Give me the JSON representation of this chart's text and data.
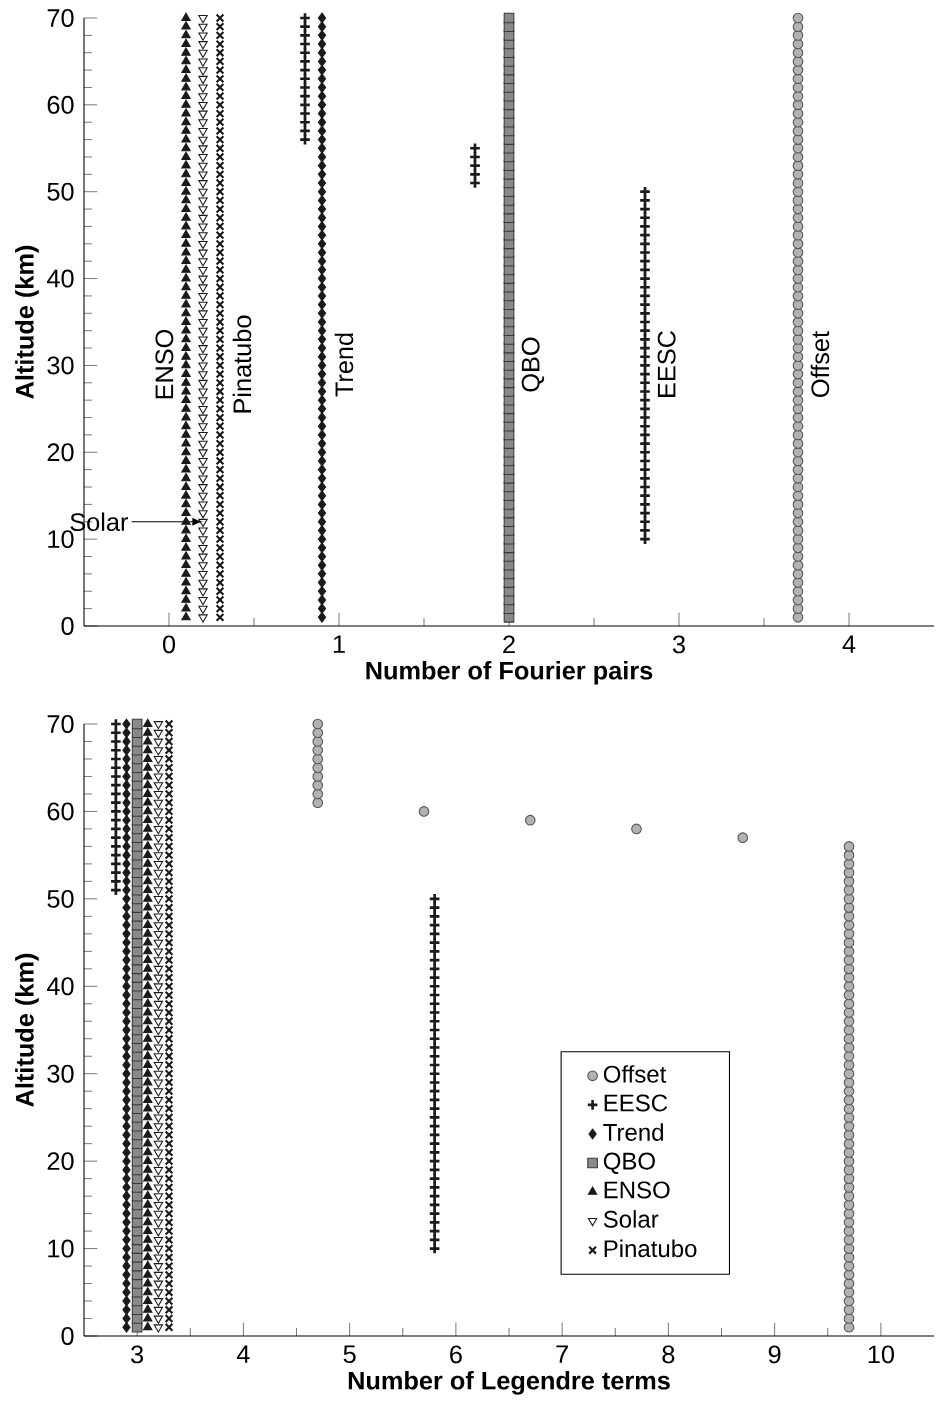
{
  "chart_data": [
    {
      "type": "scatter",
      "xlabel": "Number of Fourier pairs",
      "ylabel": "Altitude (km)",
      "xlim": [
        -0.5,
        4.5
      ],
      "ylim": [
        0,
        70
      ],
      "xticks": [
        0,
        1,
        2,
        3,
        4
      ],
      "yticks": [
        0,
        10,
        20,
        30,
        40,
        50,
        60,
        70
      ],
      "series": [
        {
          "name": "ENSO",
          "color": "#1a1a1a",
          "marker": "triangle",
          "x": [
            0.1,
            0.1,
            0.1,
            0.1,
            0.1,
            0.1,
            0.1,
            0.1,
            0.1,
            0.1,
            0.1,
            0.1,
            0.1,
            0.1,
            0.1,
            0.1,
            0.1,
            0.1,
            0.1,
            0.1,
            0.1,
            0.1,
            0.1,
            0.1,
            0.1,
            0.1,
            0.1,
            0.1,
            0.1,
            0.1,
            0.1,
            0.1,
            0.1,
            0.1,
            0.1,
            0.1,
            0.1,
            0.1,
            0.1,
            0.1,
            0.1,
            0.1,
            0.1,
            0.1,
            0.1,
            0.1,
            0.1,
            0.1,
            0.1,
            0.1,
            0.1,
            0.1,
            0.1,
            0.1,
            0.1,
            0.1,
            0.1,
            0.1,
            0.1,
            0.1,
            0.1,
            0.1,
            0.1,
            0.1,
            0.1,
            0.1,
            0.1,
            0.1,
            0.1,
            0.1
          ],
          "values": [
            1,
            2,
            3,
            4,
            5,
            6,
            7,
            8,
            9,
            10,
            11,
            12,
            13,
            14,
            15,
            16,
            17,
            18,
            19,
            20,
            21,
            22,
            23,
            24,
            25,
            26,
            27,
            28,
            29,
            30,
            31,
            32,
            33,
            34,
            35,
            36,
            37,
            38,
            39,
            40,
            41,
            42,
            43,
            44,
            45,
            46,
            47,
            48,
            49,
            50,
            51,
            52,
            53,
            54,
            55,
            56,
            57,
            58,
            59,
            60,
            61,
            62,
            63,
            64,
            65,
            66,
            67,
            68,
            69,
            70
          ]
        },
        {
          "name": "Solar",
          "color": "#1a1a1a",
          "marker": "triangle down",
          "x": [
            0.2,
            0.2,
            0.2,
            0.2,
            0.2,
            0.2,
            0.2,
            0.2,
            0.2,
            0.2,
            0.2,
            0.2,
            0.2,
            0.2,
            0.2,
            0.2,
            0.2,
            0.2,
            0.2,
            0.2,
            0.2,
            0.2,
            0.2,
            0.2,
            0.2,
            0.2,
            0.2,
            0.2,
            0.2,
            0.2,
            0.2,
            0.2,
            0.2,
            0.2,
            0.2,
            0.2,
            0.2,
            0.2,
            0.2,
            0.2,
            0.2,
            0.2,
            0.2,
            0.2,
            0.2,
            0.2,
            0.2,
            0.2,
            0.2,
            0.2,
            0.2,
            0.2,
            0.2,
            0.2,
            0.2,
            0.2,
            0.2,
            0.2,
            0.2,
            0.2,
            0.2,
            0.2,
            0.2,
            0.2,
            0.2,
            0.2,
            0.2,
            0.2,
            0.2,
            0.2
          ],
          "values": [
            1,
            2,
            3,
            4,
            5,
            6,
            7,
            8,
            9,
            10,
            11,
            12,
            13,
            14,
            15,
            16,
            17,
            18,
            19,
            20,
            21,
            22,
            23,
            24,
            25,
            26,
            27,
            28,
            29,
            30,
            31,
            32,
            33,
            34,
            35,
            36,
            37,
            38,
            39,
            40,
            41,
            42,
            43,
            44,
            45,
            46,
            47,
            48,
            49,
            50,
            51,
            52,
            53,
            54,
            55,
            56,
            57,
            58,
            59,
            60,
            61,
            62,
            63,
            64,
            65,
            66,
            67,
            68,
            69,
            70
          ]
        },
        {
          "name": "Pinatubo",
          "color": "#1a1a1a",
          "marker": "cross",
          "x": [
            0.3,
            0.3,
            0.3,
            0.3,
            0.3,
            0.3,
            0.3,
            0.3,
            0.3,
            0.3,
            0.3,
            0.3,
            0.3,
            0.3,
            0.3,
            0.3,
            0.3,
            0.3,
            0.3,
            0.3,
            0.3,
            0.3,
            0.3,
            0.3,
            0.3,
            0.3,
            0.3,
            0.3,
            0.3,
            0.3,
            0.3,
            0.3,
            0.3,
            0.3,
            0.3,
            0.3,
            0.3,
            0.3,
            0.3,
            0.3,
            0.3,
            0.3,
            0.3,
            0.3,
            0.3,
            0.3,
            0.3,
            0.3,
            0.3,
            0.3,
            0.3,
            0.3,
            0.3,
            0.3,
            0.3,
            0.3,
            0.3,
            0.3,
            0.3,
            0.3,
            0.3,
            0.3,
            0.3,
            0.3,
            0.3,
            0.3,
            0.3,
            0.3,
            0.3,
            0.3
          ],
          "values": [
            1,
            2,
            3,
            4,
            5,
            6,
            7,
            8,
            9,
            10,
            11,
            12,
            13,
            14,
            15,
            16,
            17,
            18,
            19,
            20,
            21,
            22,
            23,
            24,
            25,
            26,
            27,
            28,
            29,
            30,
            31,
            32,
            33,
            34,
            35,
            36,
            37,
            38,
            39,
            40,
            41,
            42,
            43,
            44,
            45,
            46,
            47,
            48,
            49,
            50,
            51,
            52,
            53,
            54,
            55,
            56,
            57,
            58,
            59,
            60,
            61,
            62,
            63,
            64,
            65,
            66,
            67,
            68,
            69,
            70
          ]
        },
        {
          "name": "Trend",
          "color": "#1a1a1a",
          "marker": "diamond",
          "x": [
            0.9,
            0.9,
            0.9,
            0.9,
            0.9,
            0.9,
            0.9,
            0.9,
            0.9,
            0.9,
            0.9,
            0.9,
            0.9,
            0.9,
            0.9,
            0.9,
            0.9,
            0.9,
            0.9,
            0.9,
            0.9,
            0.9,
            0.9,
            0.9,
            0.9,
            0.9,
            0.9,
            0.9,
            0.9,
            0.9,
            0.9,
            0.9,
            0.9,
            0.9,
            0.9,
            0.9,
            0.9,
            0.9,
            0.9,
            0.9,
            0.9,
            0.9,
            0.9,
            0.9,
            0.9,
            0.9,
            0.9,
            0.9,
            0.9,
            0.9,
            0.9,
            0.9,
            0.9,
            0.9,
            0.9,
            0.9,
            0.9,
            0.9,
            0.9,
            0.9,
            0.9,
            0.9,
            0.9,
            0.9,
            0.9,
            0.9,
            0.9,
            0.9,
            0.9,
            0.9
          ],
          "values": [
            1,
            2,
            3,
            4,
            5,
            6,
            7,
            8,
            9,
            10,
            11,
            12,
            13,
            14,
            15,
            16,
            17,
            18,
            19,
            20,
            21,
            22,
            23,
            24,
            25,
            26,
            27,
            28,
            29,
            30,
            31,
            32,
            33,
            34,
            35,
            36,
            37,
            38,
            39,
            40,
            41,
            42,
            43,
            44,
            45,
            46,
            47,
            48,
            49,
            50,
            51,
            52,
            53,
            54,
            55,
            56,
            57,
            58,
            59,
            60,
            61,
            62,
            63,
            64,
            65,
            66,
            67,
            68,
            69,
            70
          ]
        },
        {
          "name": "QBO",
          "color": "#3a3a3a",
          "marker": "square",
          "x": [
            2,
            2,
            2,
            2,
            2,
            2,
            2,
            2,
            2,
            2,
            2,
            2,
            2,
            2,
            2,
            2,
            2,
            2,
            2,
            2,
            2,
            2,
            2,
            2,
            2,
            2,
            2,
            2,
            2,
            2,
            2,
            2,
            2,
            2,
            2,
            2,
            2,
            2,
            2,
            2,
            2,
            2,
            2,
            2,
            2,
            2,
            2,
            2,
            2,
            2,
            2,
            2,
            2,
            2,
            2,
            2,
            2,
            2,
            2,
            2,
            2,
            2,
            2,
            2,
            2,
            2,
            2,
            2,
            2,
            2
          ],
          "values": [
            1,
            2,
            3,
            4,
            5,
            6,
            7,
            8,
            9,
            10,
            11,
            12,
            13,
            14,
            15,
            16,
            17,
            18,
            19,
            20,
            21,
            22,
            23,
            24,
            25,
            26,
            27,
            28,
            29,
            30,
            31,
            32,
            33,
            34,
            35,
            36,
            37,
            38,
            39,
            40,
            41,
            42,
            43,
            44,
            45,
            46,
            47,
            48,
            49,
            50,
            51,
            52,
            53,
            54,
            55,
            56,
            57,
            58,
            59,
            60,
            61,
            62,
            63,
            64,
            65,
            66,
            67,
            68,
            69,
            70
          ]
        },
        {
          "name": "EESC",
          "color": "#1a1a1a",
          "marker": "plus",
          "x": [
            0.8,
            0.8,
            0.8,
            0.8,
            0.8,
            0.8,
            0.8,
            0.8,
            0.8,
            0.8,
            0.8,
            0.8,
            0.8,
            0.8,
            0.8,
            1.8,
            1.8,
            1.8,
            1.8,
            1.8,
            2.8,
            2.8,
            2.8,
            2.8,
            2.8,
            2.8,
            2.8,
            2.8,
            2.8,
            2.8,
            2.8,
            2.8,
            2.8,
            2.8,
            2.8,
            2.8,
            2.8,
            2.8,
            2.8,
            2.8,
            2.8,
            2.8,
            2.8,
            2.8,
            2.8,
            2.8,
            2.8,
            2.8,
            2.8,
            2.8,
            2.8,
            2.8,
            2.8,
            2.8,
            2.8,
            2.8,
            2.8,
            2.8,
            2.8,
            2.8,
            2.8
          ],
          "values": [
            56,
            57,
            58,
            59,
            60,
            61,
            62,
            63,
            64,
            65,
            66,
            67,
            68,
            69,
            70,
            51,
            52,
            53,
            54,
            55,
            10,
            11,
            12,
            13,
            14,
            15,
            16,
            17,
            18,
            19,
            20,
            21,
            22,
            23,
            24,
            25,
            26,
            27,
            28,
            29,
            30,
            31,
            32,
            33,
            34,
            35,
            36,
            37,
            38,
            39,
            40,
            41,
            42,
            43,
            44,
            45,
            46,
            47,
            48,
            49,
            50
          ]
        },
        {
          "name": "Offset",
          "color": "#555555",
          "marker": "circle",
          "x": [
            3.7,
            3.7,
            3.7,
            3.7,
            3.7,
            3.7,
            3.7,
            3.7,
            3.7,
            3.7,
            3.7,
            3.7,
            3.7,
            3.7,
            3.7,
            3.7,
            3.7,
            3.7,
            3.7,
            3.7,
            3.7,
            3.7,
            3.7,
            3.7,
            3.7,
            3.7,
            3.7,
            3.7,
            3.7,
            3.7,
            3.7,
            3.7,
            3.7,
            3.7,
            3.7,
            3.7,
            3.7,
            3.7,
            3.7,
            3.7,
            3.7,
            3.7,
            3.7,
            3.7,
            3.7,
            3.7,
            3.7,
            3.7,
            3.7,
            3.7,
            3.7,
            3.7,
            3.7,
            3.7,
            3.7,
            3.7,
            3.7,
            3.7,
            3.7,
            3.7,
            3.7,
            3.7,
            3.7,
            3.7,
            3.7,
            3.7,
            3.7,
            3.7,
            3.7,
            3.7
          ],
          "values": [
            1,
            2,
            3,
            4,
            5,
            6,
            7,
            8,
            9,
            10,
            11,
            12,
            13,
            14,
            15,
            16,
            17,
            18,
            19,
            20,
            21,
            22,
            23,
            24,
            25,
            26,
            27,
            28,
            29,
            30,
            31,
            32,
            33,
            34,
            35,
            36,
            37,
            38,
            39,
            40,
            41,
            42,
            43,
            44,
            45,
            46,
            47,
            48,
            49,
            50,
            51,
            52,
            53,
            54,
            55,
            56,
            57,
            58,
            59,
            60,
            61,
            62,
            63,
            64,
            65,
            66,
            67,
            68,
            69,
            70
          ]
        }
      ]
    },
    {
      "type": "scatter",
      "xlabel": "Number of Legendre terms",
      "ylabel": "Altitude (km)",
      "xlim": [
        2.5,
        10.5
      ],
      "ylim": [
        0,
        70
      ],
      "xticks": [
        3,
        4,
        5,
        6,
        7,
        8,
        9,
        10
      ],
      "yticks": [
        0,
        10,
        20,
        30,
        40,
        50,
        60,
        70
      ],
      "legend": "bottom right",
      "series": [
        {
          "name": "Offset",
          "color": "#555555",
          "marker": "circle",
          "x": [
            4.7,
            4.7,
            4.7,
            4.7,
            4.7,
            4.7,
            4.7,
            4.7,
            4.7,
            4.7,
            5.7,
            6.7,
            7.7,
            8.7,
            9.7,
            9.7,
            9.7,
            9.7,
            9.7,
            9.7,
            9.7,
            9.7,
            9.7,
            9.7,
            9.7,
            9.7,
            9.7,
            9.7,
            9.7,
            9.7,
            9.7,
            9.7,
            9.7,
            9.7,
            9.7,
            9.7,
            9.7,
            9.7,
            9.7,
            9.7,
            9.7,
            9.7,
            9.7,
            9.7,
            9.7,
            9.7,
            9.7,
            9.7,
            9.7,
            9.7,
            9.7,
            9.7,
            9.7,
            9.7,
            9.7,
            9.7,
            9.7,
            9.7,
            9.7,
            9.7,
            9.7,
            9.7,
            9.7,
            9.7,
            9.7,
            9.7,
            9.7,
            9.7,
            9.7,
            9.7
          ],
          "values": [
            61,
            62,
            63,
            64,
            65,
            66,
            67,
            68,
            69,
            70,
            60,
            59,
            58,
            57,
            1,
            2,
            3,
            4,
            5,
            6,
            7,
            8,
            9,
            10,
            11,
            12,
            13,
            14,
            15,
            16,
            17,
            18,
            19,
            20,
            21,
            22,
            23,
            24,
            25,
            26,
            27,
            28,
            29,
            30,
            31,
            32,
            33,
            34,
            35,
            36,
            37,
            38,
            39,
            40,
            41,
            42,
            43,
            44,
            45,
            46,
            47,
            48,
            49,
            50,
            51,
            52,
            53,
            54,
            55,
            56
          ]
        },
        {
          "name": "EESC",
          "color": "#1a1a1a",
          "marker": "plus",
          "x": [
            2.8,
            2.8,
            2.8,
            2.8,
            2.8,
            2.8,
            2.8,
            2.8,
            2.8,
            2.8,
            2.8,
            2.8,
            2.8,
            2.8,
            2.8,
            2.8,
            2.8,
            2.8,
            2.8,
            2.8,
            5.8,
            5.8,
            5.8,
            5.8,
            5.8,
            5.8,
            5.8,
            5.8,
            5.8,
            5.8,
            5.8,
            5.8,
            5.8,
            5.8,
            5.8,
            5.8,
            5.8,
            5.8,
            5.8,
            5.8,
            5.8,
            5.8,
            5.8,
            5.8,
            5.8,
            5.8,
            5.8,
            5.8,
            5.8,
            5.8,
            5.8,
            5.8,
            5.8,
            5.8,
            5.8,
            5.8,
            5.8,
            5.8,
            5.8,
            5.8,
            5.8
          ],
          "values": [
            51,
            52,
            53,
            54,
            55,
            56,
            57,
            58,
            59,
            60,
            61,
            62,
            63,
            64,
            65,
            66,
            67,
            68,
            69,
            70,
            10,
            11,
            12,
            13,
            14,
            15,
            16,
            17,
            18,
            19,
            20,
            21,
            22,
            23,
            24,
            25,
            26,
            27,
            28,
            29,
            30,
            31,
            32,
            33,
            34,
            35,
            36,
            37,
            38,
            39,
            40,
            41,
            42,
            43,
            44,
            45,
            46,
            47,
            48,
            49,
            50
          ]
        },
        {
          "name": "Trend",
          "color": "#1a1a1a",
          "marker": "diamond",
          "x": [
            2.9,
            2.9,
            2.9,
            2.9,
            2.9,
            2.9,
            2.9,
            2.9,
            2.9,
            2.9,
            2.9,
            2.9,
            2.9,
            2.9,
            2.9,
            2.9,
            2.9,
            2.9,
            2.9,
            2.9,
            2.9,
            2.9,
            2.9,
            2.9,
            2.9,
            2.9,
            2.9,
            2.9,
            2.9,
            2.9,
            2.9,
            2.9,
            2.9,
            2.9,
            2.9,
            2.9,
            2.9,
            2.9,
            2.9,
            2.9,
            2.9,
            2.9,
            2.9,
            2.9,
            2.9,
            2.9,
            2.9,
            2.9,
            2.9,
            2.9,
            2.9,
            2.9,
            2.9,
            2.9,
            2.9,
            2.9,
            2.9,
            2.9,
            2.9,
            2.9,
            2.9,
            2.9,
            2.9,
            2.9,
            2.9,
            2.9,
            2.9,
            2.9,
            2.9,
            2.9
          ],
          "values": [
            1,
            2,
            3,
            4,
            5,
            6,
            7,
            8,
            9,
            10,
            11,
            12,
            13,
            14,
            15,
            16,
            17,
            18,
            19,
            20,
            21,
            22,
            23,
            24,
            25,
            26,
            27,
            28,
            29,
            30,
            31,
            32,
            33,
            34,
            35,
            36,
            37,
            38,
            39,
            40,
            41,
            42,
            43,
            44,
            45,
            46,
            47,
            48,
            49,
            50,
            51,
            52,
            53,
            54,
            55,
            56,
            57,
            58,
            59,
            60,
            61,
            62,
            63,
            64,
            65,
            66,
            67,
            68,
            69,
            70
          ]
        },
        {
          "name": "QBO",
          "color": "#3a3a3a",
          "marker": "square",
          "x": [
            3,
            3,
            3,
            3,
            3,
            3,
            3,
            3,
            3,
            3,
            3,
            3,
            3,
            3,
            3,
            3,
            3,
            3,
            3,
            3,
            3,
            3,
            3,
            3,
            3,
            3,
            3,
            3,
            3,
            3,
            3,
            3,
            3,
            3,
            3,
            3,
            3,
            3,
            3,
            3,
            3,
            3,
            3,
            3,
            3,
            3,
            3,
            3,
            3,
            3,
            3,
            3,
            3,
            3,
            3,
            3,
            3,
            3,
            3,
            3,
            3,
            3,
            3,
            3,
            3,
            3,
            3,
            3,
            3,
            3
          ],
          "values": [
            1,
            2,
            3,
            4,
            5,
            6,
            7,
            8,
            9,
            10,
            11,
            12,
            13,
            14,
            15,
            16,
            17,
            18,
            19,
            20,
            21,
            22,
            23,
            24,
            25,
            26,
            27,
            28,
            29,
            30,
            31,
            32,
            33,
            34,
            35,
            36,
            37,
            38,
            39,
            40,
            41,
            42,
            43,
            44,
            45,
            46,
            47,
            48,
            49,
            50,
            51,
            52,
            53,
            54,
            55,
            56,
            57,
            58,
            59,
            60,
            61,
            62,
            63,
            64,
            65,
            66,
            67,
            68,
            69,
            70
          ]
        },
        {
          "name": "ENSO",
          "color": "#1a1a1a",
          "marker": "triangle",
          "x": [
            3.1,
            3.1,
            3.1,
            3.1,
            3.1,
            3.1,
            3.1,
            3.1,
            3.1,
            3.1,
            3.1,
            3.1,
            3.1,
            3.1,
            3.1,
            3.1,
            3.1,
            3.1,
            3.1,
            3.1,
            3.1,
            3.1,
            3.1,
            3.1,
            3.1,
            3.1,
            3.1,
            3.1,
            3.1,
            3.1,
            3.1,
            3.1,
            3.1,
            3.1,
            3.1,
            3.1,
            3.1,
            3.1,
            3.1,
            3.1,
            3.1,
            3.1,
            3.1,
            3.1,
            3.1,
            3.1,
            3.1,
            3.1,
            3.1,
            3.1,
            3.1,
            3.1,
            3.1,
            3.1,
            3.1,
            3.1,
            3.1,
            3.1,
            3.1,
            3.1,
            3.1,
            3.1,
            3.1,
            3.1,
            3.1,
            3.1,
            3.1,
            3.1,
            3.1,
            3.1
          ],
          "values": [
            1,
            2,
            3,
            4,
            5,
            6,
            7,
            8,
            9,
            10,
            11,
            12,
            13,
            14,
            15,
            16,
            17,
            18,
            19,
            20,
            21,
            22,
            23,
            24,
            25,
            26,
            27,
            28,
            29,
            30,
            31,
            32,
            33,
            34,
            35,
            36,
            37,
            38,
            39,
            40,
            41,
            42,
            43,
            44,
            45,
            46,
            47,
            48,
            49,
            50,
            51,
            52,
            53,
            54,
            55,
            56,
            57,
            58,
            59,
            60,
            61,
            62,
            63,
            64,
            65,
            66,
            67,
            68,
            69,
            70
          ]
        },
        {
          "name": "Solar",
          "color": "#1a1a1a",
          "marker": "triangle down",
          "x": [
            3.2,
            3.2,
            3.2,
            3.2,
            3.2,
            3.2,
            3.2,
            3.2,
            3.2,
            3.2,
            3.2,
            3.2,
            3.2,
            3.2,
            3.2,
            3.2,
            3.2,
            3.2,
            3.2,
            3.2,
            3.2,
            3.2,
            3.2,
            3.2,
            3.2,
            3.2,
            3.2,
            3.2,
            3.2,
            3.2,
            3.2,
            3.2,
            3.2,
            3.2,
            3.2,
            3.2,
            3.2,
            3.2,
            3.2,
            3.2,
            3.2,
            3.2,
            3.2,
            3.2,
            3.2,
            3.2,
            3.2,
            3.2,
            3.2,
            3.2,
            3.2,
            3.2,
            3.2,
            3.2,
            3.2,
            3.2,
            3.2,
            3.2,
            3.2,
            3.2,
            3.2,
            3.2,
            3.2,
            3.2,
            3.2,
            3.2,
            3.2,
            3.2,
            3.2,
            3.2
          ],
          "values": [
            1,
            2,
            3,
            4,
            5,
            6,
            7,
            8,
            9,
            10,
            11,
            12,
            13,
            14,
            15,
            16,
            17,
            18,
            19,
            20,
            21,
            22,
            23,
            24,
            25,
            26,
            27,
            28,
            29,
            30,
            31,
            32,
            33,
            34,
            35,
            36,
            37,
            38,
            39,
            40,
            41,
            42,
            43,
            44,
            45,
            46,
            47,
            48,
            49,
            50,
            51,
            52,
            53,
            54,
            55,
            56,
            57,
            58,
            59,
            60,
            61,
            62,
            63,
            64,
            65,
            66,
            67,
            68,
            69,
            70
          ]
        },
        {
          "name": "Pinatubo",
          "color": "#1a1a1a",
          "marker": "cross",
          "x": [
            3.3,
            3.3,
            3.3,
            3.3,
            3.3,
            3.3,
            3.3,
            3.3,
            3.3,
            3.3,
            3.3,
            3.3,
            3.3,
            3.3,
            3.3,
            3.3,
            3.3,
            3.3,
            3.3,
            3.3,
            3.3,
            3.3,
            3.3,
            3.3,
            3.3,
            3.3,
            3.3,
            3.3,
            3.3,
            3.3,
            3.3,
            3.3,
            3.3,
            3.3,
            3.3,
            3.3,
            3.3,
            3.3,
            3.3,
            3.3,
            3.3,
            3.3,
            3.3,
            3.3,
            3.3,
            3.3,
            3.3,
            3.3,
            3.3,
            3.3,
            3.3,
            3.3,
            3.3,
            3.3,
            3.3,
            3.3,
            3.3,
            3.3,
            3.3,
            3.3,
            3.3,
            3.3,
            3.3,
            3.3,
            3.3,
            3.3,
            3.3,
            3.3,
            3.3,
            3.3
          ],
          "values": [
            1,
            2,
            3,
            4,
            5,
            6,
            7,
            8,
            9,
            10,
            11,
            12,
            13,
            14,
            15,
            16,
            17,
            18,
            19,
            20,
            21,
            22,
            23,
            24,
            25,
            26,
            27,
            28,
            29,
            30,
            31,
            32,
            33,
            34,
            35,
            36,
            37,
            38,
            39,
            40,
            41,
            42,
            43,
            44,
            45,
            46,
            47,
            48,
            49,
            50,
            51,
            52,
            53,
            54,
            55,
            56,
            57,
            58,
            59,
            60,
            61,
            62,
            63,
            64,
            65,
            66,
            67,
            68,
            69,
            70
          ]
        }
      ]
    }
  ]
}
